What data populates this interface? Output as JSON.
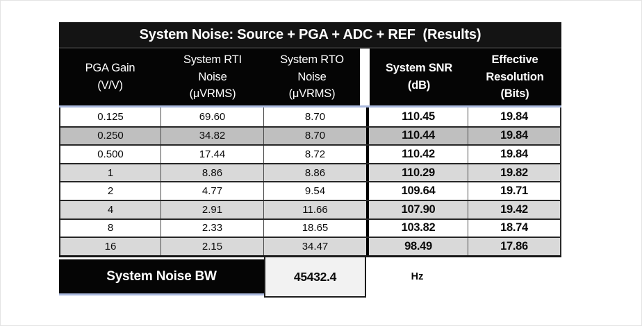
{
  "chart_data": {
    "type": "table",
    "title": "System Noise: Source + PGA + ADC + REF  (Results)",
    "columns": [
      "PGA Gain\n(V/V)",
      "System RTI\nNoise\n(μVRMS)",
      "System RTO\nNoise\n(μVRMS)",
      "System SNR\n(dB)",
      "Effective\nResolution\n(Bits)"
    ],
    "rows": [
      [
        "0.125",
        "69.60",
        "8.70",
        "110.45",
        "19.84"
      ],
      [
        "0.250",
        "34.82",
        "8.70",
        "110.44",
        "19.84"
      ],
      [
        "0.500",
        "17.44",
        "8.72",
        "110.42",
        "19.84"
      ],
      [
        "1",
        "8.86",
        "8.86",
        "110.29",
        "19.82"
      ],
      [
        "2",
        "4.77",
        "9.54",
        "109.64",
        "19.71"
      ],
      [
        "4",
        "2.91",
        "11.66",
        "107.90",
        "19.42"
      ],
      [
        "8",
        "2.33",
        "18.65",
        "103.82",
        "18.74"
      ],
      [
        "16",
        "2.15",
        "34.47",
        "98.49",
        "17.86"
      ]
    ],
    "footer": {
      "label": "System Noise BW",
      "value": "45432.4",
      "unit": "Hz"
    },
    "layout": {
      "legend": "none",
      "grid": "table-borders"
    }
  },
  "colors": {
    "header_bg": "#050505",
    "title_bg": "#141414",
    "header_text": "#ffffff",
    "row_alt_dark": "#bfbfbf",
    "row_alt_light": "#d9d9d9",
    "accent_line": "#aab9de",
    "footer_value_bg": "#f2f2f2",
    "border_dark": "#1c1c1c"
  }
}
